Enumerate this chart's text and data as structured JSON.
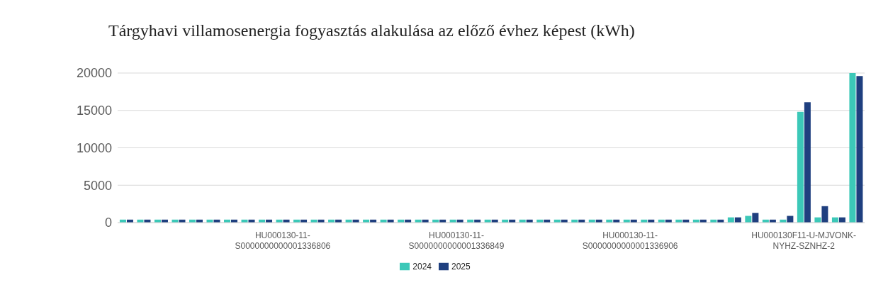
{
  "chart_data": {
    "type": "bar",
    "title": "Tárgyhavi villamosenergia fogyasztás alakulása az előző évhez képest (kWh)",
    "categories": [
      null,
      null,
      null,
      null,
      null,
      null,
      null,
      null,
      null,
      "HU000130-11-S0000000000001336806",
      null,
      null,
      null,
      null,
      null,
      null,
      null,
      null,
      null,
      "HU000130-11-S0000000000001336849",
      null,
      null,
      null,
      null,
      null,
      null,
      null,
      null,
      null,
      "HU000130-11-S0000000000001336906",
      null,
      null,
      null,
      null,
      null,
      null,
      null,
      null,
      null,
      "HU000130F11-U-MJVONK-NYHZ-SZNHZ-2",
      null,
      null,
      null
    ],
    "series": [
      {
        "name": "2024",
        "color": "#3cc8b8",
        "values": [
          400,
          400,
          400,
          400,
          400,
          400,
          400,
          400,
          400,
          400,
          400,
          400,
          400,
          400,
          400,
          400,
          400,
          400,
          400,
          400,
          400,
          400,
          400,
          400,
          400,
          400,
          400,
          400,
          400,
          400,
          400,
          400,
          400,
          400,
          400,
          700,
          900,
          400,
          400,
          14800,
          700,
          700,
          20000
        ]
      },
      {
        "name": "2025",
        "color": "#1f3f7f",
        "values": [
          400,
          400,
          400,
          400,
          400,
          400,
          400,
          400,
          400,
          400,
          400,
          400,
          400,
          400,
          400,
          400,
          400,
          400,
          400,
          400,
          400,
          400,
          400,
          400,
          400,
          400,
          400,
          400,
          400,
          400,
          400,
          400,
          400,
          400,
          400,
          700,
          1300,
          400,
          900,
          16100,
          2200,
          700,
          19600
        ]
      }
    ],
    "ylim": [
      0,
      20000
    ],
    "yticks": [
      0,
      5000,
      10000,
      15000,
      20000
    ],
    "grid": "y",
    "legend": "bottom"
  }
}
